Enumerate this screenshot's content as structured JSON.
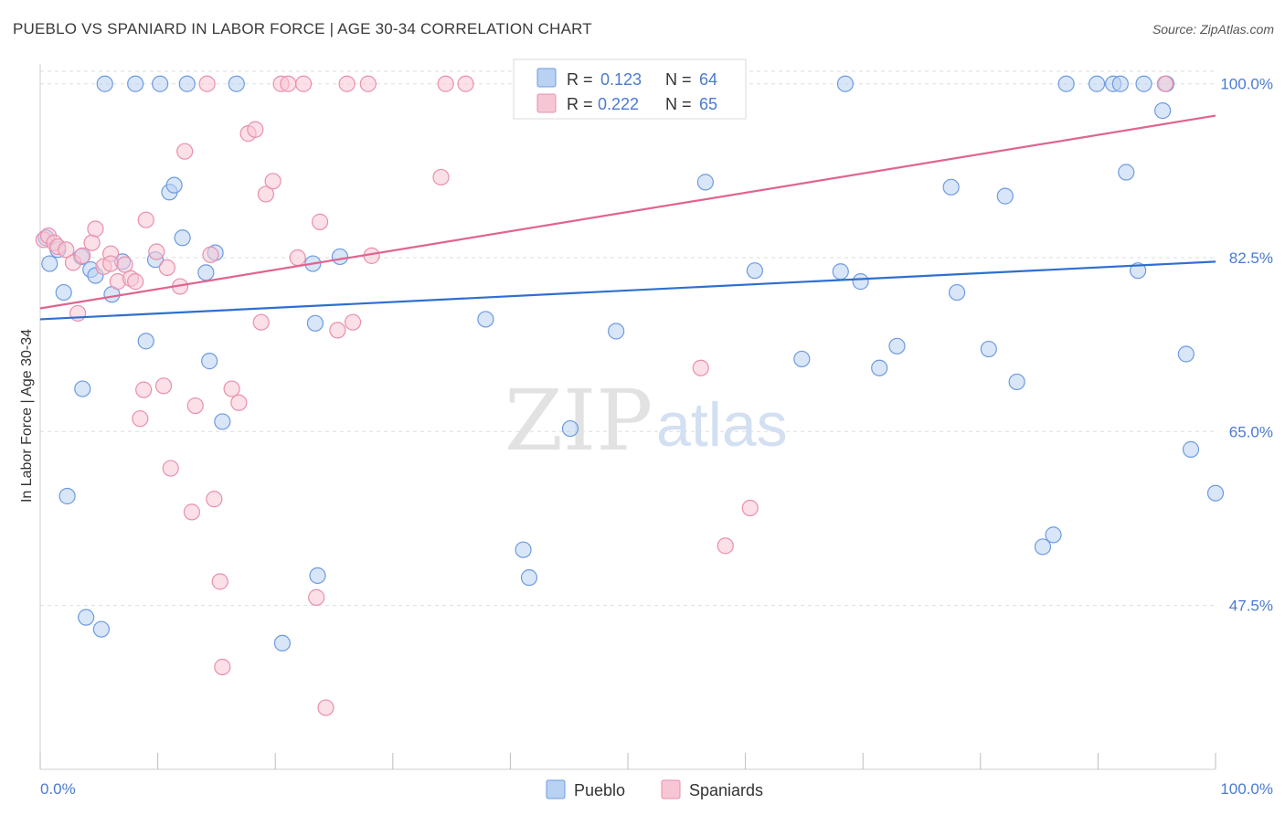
{
  "title": "PUEBLO VS SPANIARD IN LABOR FORCE | AGE 30-34 CORRELATION CHART",
  "source": "Source: ZipAtlas.com",
  "watermark": {
    "zip": "ZIP",
    "atlas": "atlas"
  },
  "colors": {
    "pueblo_fill": "#b9d1f2",
    "pueblo_stroke": "#6d9be0",
    "pueblo_line": "#2f6fcf",
    "spaniards_fill": "#f7c6d4",
    "spaniards_stroke": "#ea8fad",
    "spaniards_line": "#e0648f",
    "grid": "#dddddd",
    "axis_text": "#4a7bd0"
  },
  "legend": {
    "rows": [
      {
        "r_label": "R = ",
        "r_value": "0.123",
        "n_label": "N = ",
        "n_value": "64"
      },
      {
        "r_label": "R = ",
        "r_value": "0.222",
        "n_label": "N = ",
        "n_value": "65"
      }
    ]
  },
  "bottom_legend": [
    "Pueblo",
    "Spaniards"
  ],
  "chart_data": {
    "type": "scatter",
    "title": "PUEBLO VS SPANIARD IN LABOR FORCE | AGE 30-34 CORRELATION CHART",
    "xlabel": "",
    "ylabel": "In Labor Force | Age 30-34",
    "xlim": [
      0,
      100
    ],
    "ylim": [
      31,
      102
    ],
    "x_tick_labels": [
      "0.0%",
      "100.0%"
    ],
    "y_ticks": [
      47.5,
      65.0,
      82.5,
      100.0
    ],
    "y_tick_labels": [
      "47.5%",
      "65.0%",
      "82.5%",
      "100.0%"
    ],
    "series": [
      {
        "name": "Pueblo",
        "r": 0.123,
        "n": 64,
        "trend": {
          "x": [
            0,
            100
          ],
          "y": [
            76.3,
            82.1
          ]
        },
        "points": [
          [
            0.5,
            84.5
          ],
          [
            0.8,
            81.9
          ],
          [
            1.5,
            83.3
          ],
          [
            2.0,
            79.0
          ],
          [
            2.3,
            58.5
          ],
          [
            3.5,
            82.6
          ],
          [
            3.6,
            69.3
          ],
          [
            3.9,
            46.3
          ],
          [
            4.3,
            81.3
          ],
          [
            4.7,
            80.7
          ],
          [
            5.2,
            45.1
          ],
          [
            5.5,
            100
          ],
          [
            6.1,
            78.8
          ],
          [
            7.0,
            82.1
          ],
          [
            8.1,
            100
          ],
          [
            9.0,
            74.1
          ],
          [
            9.8,
            82.3
          ],
          [
            10.2,
            100
          ],
          [
            11.0,
            89.1
          ],
          [
            11.4,
            89.8
          ],
          [
            12.1,
            84.5
          ],
          [
            12.5,
            100
          ],
          [
            14.1,
            81.0
          ],
          [
            14.4,
            72.1
          ],
          [
            14.9,
            83.0
          ],
          [
            15.5,
            66.0
          ],
          [
            16.7,
            100
          ],
          [
            20.6,
            43.7
          ],
          [
            23.2,
            81.9
          ],
          [
            23.4,
            75.9
          ],
          [
            23.6,
            50.5
          ],
          [
            25.5,
            82.6
          ],
          [
            37.9,
            76.3
          ],
          [
            41.1,
            53.1
          ],
          [
            41.6,
            50.3
          ],
          [
            45.1,
            65.3
          ],
          [
            49.0,
            75.1
          ],
          [
            56.3,
            100
          ],
          [
            56.6,
            90.1
          ],
          [
            60.8,
            81.2
          ],
          [
            64.8,
            72.3
          ],
          [
            68.1,
            81.1
          ],
          [
            68.5,
            100
          ],
          [
            69.8,
            80.1
          ],
          [
            71.4,
            71.4
          ],
          [
            72.9,
            73.6
          ],
          [
            77.5,
            89.6
          ],
          [
            78.0,
            79.0
          ],
          [
            80.7,
            73.3
          ],
          [
            82.1,
            88.7
          ],
          [
            83.1,
            70.0
          ],
          [
            85.3,
            53.4
          ],
          [
            86.2,
            54.6
          ],
          [
            87.3,
            100
          ],
          [
            89.9,
            100
          ],
          [
            91.3,
            100
          ],
          [
            91.9,
            100
          ],
          [
            92.4,
            91.1
          ],
          [
            93.4,
            81.2
          ],
          [
            95.5,
            97.3
          ],
          [
            93.9,
            100
          ],
          [
            95.8,
            100
          ],
          [
            97.5,
            72.8
          ],
          [
            97.9,
            63.2
          ],
          [
            100,
            58.8
          ]
        ]
      },
      {
        "name": "Spaniards",
        "r": 0.222,
        "n": 65,
        "trend": {
          "x": [
            0,
            100
          ],
          "y": [
            77.4,
            96.8
          ]
        },
        "points": [
          [
            0.3,
            84.3
          ],
          [
            0.7,
            84.7
          ],
          [
            1.2,
            84.0
          ],
          [
            1.5,
            83.6
          ],
          [
            2.2,
            83.3
          ],
          [
            2.8,
            82.0
          ],
          [
            3.2,
            76.9
          ],
          [
            3.6,
            82.7
          ],
          [
            4.4,
            84.0
          ],
          [
            4.7,
            85.4
          ],
          [
            5.4,
            81.6
          ],
          [
            6.0,
            82.9
          ],
          [
            6.0,
            81.9
          ],
          [
            6.6,
            80.1
          ],
          [
            7.2,
            81.8
          ],
          [
            7.7,
            80.4
          ],
          [
            8.1,
            80.1
          ],
          [
            8.5,
            66.3
          ],
          [
            8.8,
            69.2
          ],
          [
            9.0,
            86.3
          ],
          [
            9.9,
            83.1
          ],
          [
            10.5,
            69.6
          ],
          [
            10.8,
            81.5
          ],
          [
            11.1,
            61.3
          ],
          [
            11.9,
            79.6
          ],
          [
            12.3,
            93.2
          ],
          [
            12.9,
            56.9
          ],
          [
            13.2,
            67.6
          ],
          [
            14.2,
            100
          ],
          [
            14.5,
            82.8
          ],
          [
            14.8,
            58.2
          ],
          [
            15.3,
            49.9
          ],
          [
            15.5,
            41.3
          ],
          [
            16.3,
            69.3
          ],
          [
            16.9,
            67.9
          ],
          [
            17.7,
            95.0
          ],
          [
            18.3,
            95.4
          ],
          [
            18.8,
            76.0
          ],
          [
            19.2,
            88.9
          ],
          [
            19.8,
            90.2
          ],
          [
            20.5,
            100
          ],
          [
            21.1,
            100
          ],
          [
            21.9,
            82.5
          ],
          [
            22.4,
            100
          ],
          [
            23.5,
            48.3
          ],
          [
            23.8,
            86.1
          ],
          [
            24.3,
            37.2
          ],
          [
            25.3,
            75.2
          ],
          [
            26.1,
            100
          ],
          [
            26.6,
            76.0
          ],
          [
            27.9,
            100
          ],
          [
            28.2,
            82.7
          ],
          [
            34.1,
            90.6
          ],
          [
            34.5,
            100
          ],
          [
            36.2,
            100
          ],
          [
            41.2,
            100
          ],
          [
            44.3,
            100
          ],
          [
            47.5,
            100
          ],
          [
            51.1,
            100
          ],
          [
            51.5,
            100
          ],
          [
            52.3,
            100
          ],
          [
            56.2,
            71.4
          ],
          [
            58.3,
            53.5
          ],
          [
            60.4,
            57.3
          ],
          [
            95.7,
            100
          ]
        ]
      }
    ]
  }
}
